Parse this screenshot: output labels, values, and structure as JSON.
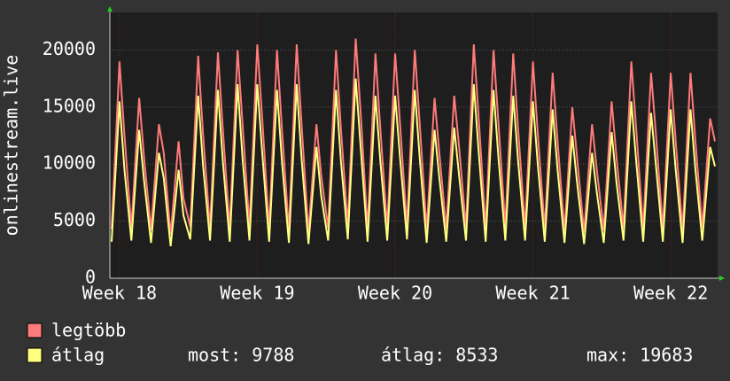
{
  "chart_data": {
    "type": "line",
    "y_label": "onlinestream.live",
    "x": [
      17.943,
      18.0,
      18.036,
      18.086,
      18.143,
      18.179,
      18.229,
      18.286,
      18.321,
      18.371,
      18.429,
      18.464,
      18.514,
      18.571,
      18.607,
      18.657,
      18.714,
      18.75,
      18.8,
      18.857,
      18.893,
      18.943,
      19.0,
      19.036,
      19.086,
      19.143,
      19.179,
      19.229,
      19.286,
      19.321,
      19.371,
      19.429,
      19.464,
      19.514,
      19.571,
      19.607,
      19.657,
      19.714,
      19.75,
      19.8,
      19.857,
      19.893,
      19.943,
      20.0,
      20.036,
      20.086,
      20.143,
      20.179,
      20.229,
      20.286,
      20.321,
      20.371,
      20.429,
      20.464,
      20.514,
      20.571,
      20.607,
      20.657,
      20.714,
      20.75,
      20.8,
      20.857,
      20.893,
      20.943,
      21.0,
      21.036,
      21.086,
      21.143,
      21.179,
      21.229,
      21.286,
      21.321,
      21.371,
      21.429,
      21.464,
      21.514,
      21.571,
      21.607,
      21.657,
      21.714,
      21.75,
      21.8,
      21.857,
      21.893,
      21.943,
      22.0,
      22.036,
      22.086,
      22.143,
      22.179,
      22.229,
      22.286,
      22.321
    ],
    "series": [
      {
        "name": "legtöbb",
        "color": "#ff7a7a",
        "values": [
          4300,
          19000,
          12500,
          4400,
          15800,
          10500,
          4200,
          13500,
          11000,
          3800,
          12000,
          7000,
          4500,
          19500,
          12500,
          4400,
          19800,
          13000,
          4300,
          20000,
          13500,
          4500,
          20500,
          14000,
          4300,
          20000,
          13000,
          4200,
          20500,
          13500,
          4000,
          13500,
          9000,
          4400,
          20000,
          13000,
          4600,
          21000,
          14500,
          4300,
          19700,
          13000,
          4400,
          19700,
          13500,
          4500,
          20000,
          13500,
          4200,
          15800,
          11000,
          4300,
          16000,
          11500,
          4400,
          20500,
          14000,
          4300,
          20000,
          13500,
          4500,
          19700,
          13000,
          4400,
          19000,
          12500,
          4300,
          18000,
          12000,
          4100,
          15000,
          10500,
          4000,
          13500,
          9500,
          4200,
          15500,
          10500,
          4400,
          19000,
          13000,
          4300,
          18000,
          12500,
          4300,
          18000,
          12000,
          4200,
          18000,
          12000,
          4400,
          14000,
          12000
        ]
      },
      {
        "name": "átlag",
        "color": "#ffff80",
        "values": [
          3200,
          15500,
          9500,
          3300,
          13000,
          8500,
          3100,
          11000,
          8800,
          2800,
          9500,
          5500,
          3400,
          16000,
          9800,
          3300,
          16500,
          10200,
          3200,
          17000,
          10500,
          3300,
          17000,
          11000,
          3200,
          16500,
          10200,
          3100,
          17000,
          10500,
          3000,
          11500,
          7200,
          3300,
          16500,
          10200,
          3400,
          17500,
          11500,
          3200,
          16000,
          10200,
          3300,
          16000,
          10500,
          3400,
          16500,
          10500,
          3100,
          13000,
          8800,
          3200,
          13200,
          9000,
          3300,
          17000,
          11000,
          3200,
          16500,
          10500,
          3300,
          16000,
          10200,
          3300,
          15500,
          9800,
          3200,
          14800,
          9500,
          3100,
          12500,
          8300,
          3000,
          11000,
          7500,
          3100,
          12800,
          8300,
          3300,
          15500,
          10200,
          3200,
          14500,
          9800,
          3200,
          14800,
          9500,
          3100,
          14800,
          9500,
          3300,
          11500,
          9800
        ]
      }
    ],
    "xlim": [
      17.93,
      22.34
    ],
    "xticks": [
      {
        "value": 18,
        "label": "Week 18"
      },
      {
        "value": 19,
        "label": "Week 19"
      },
      {
        "value": 20,
        "label": "Week 20"
      },
      {
        "value": 21,
        "label": "Week 21"
      },
      {
        "value": 22,
        "label": "Week 22"
      }
    ],
    "ylim": [
      0,
      23300
    ],
    "yticks": [
      0,
      5000,
      10000,
      15000,
      20000
    ],
    "grid": true,
    "stats": [
      "most: 9788",
      "átlag: 8533",
      "max: 19683"
    ]
  }
}
